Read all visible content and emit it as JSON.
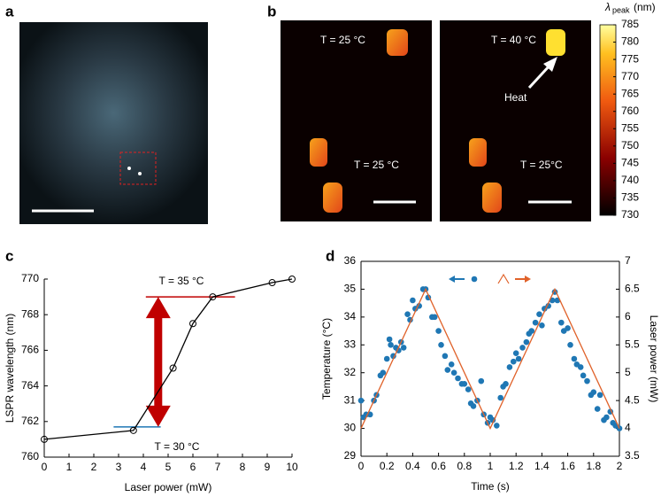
{
  "panels": {
    "a": {
      "label": "a"
    },
    "b": {
      "label": "b",
      "annotations": [
        "T = 25 °C",
        "T = 25 °C",
        "T = 40 °C",
        "Heat",
        "T = 25°C"
      ],
      "colorbar": {
        "symbol": "λ",
        "subscript": "peak",
        "unit": "(nm)",
        "lim": [
          730,
          785
        ],
        "ticks": [
          730,
          735,
          740,
          745,
          750,
          755,
          760,
          765,
          770,
          775,
          780,
          785
        ]
      }
    },
    "c": {
      "label": "c"
    },
    "d": {
      "label": "d"
    }
  },
  "chart_data": [
    {
      "type": "line",
      "xlabel": "Laser power (mW)",
      "ylabel": "LSPR wavelength (nm)",
      "x": [
        0,
        3.6,
        5.2,
        6,
        6.8,
        9.2,
        10
      ],
      "series": [
        {
          "color": "#000000",
          "values": [
            761,
            761.5,
            765,
            767.5,
            769,
            769.8,
            770
          ]
        }
      ],
      "xlim": [
        0,
        10
      ],
      "xticks": [
        0,
        1,
        2,
        3,
        4,
        5,
        6,
        7,
        8,
        9,
        10
      ],
      "ylim": [
        760,
        770
      ],
      "yticks": [
        760,
        762,
        764,
        766,
        768,
        770
      ],
      "hlines": [
        {
          "y": 769,
          "xmin": 4.1,
          "xmax": 7.7,
          "color": "#c00000"
        },
        {
          "y": 761.7,
          "xmin": 2.8,
          "xmax": 4.7,
          "color": "#1f77b4"
        }
      ],
      "arrow": {
        "x": 4.6,
        "color": "#c00000"
      },
      "annotations": [
        "T = 35 °C",
        "T = 30 °C"
      ]
    },
    {
      "type": "line",
      "xlabel": "Time (s)",
      "ylabel": "Temperature (°C)",
      "y2label": "Laser power (mW)",
      "box": true,
      "x": [
        0,
        0.02,
        0.04,
        0.07,
        0.1,
        0.12,
        0.15,
        0.17,
        0.2,
        0.22,
        0.23,
        0.25,
        0.27,
        0.29,
        0.31,
        0.33,
        0.36,
        0.38,
        0.4,
        0.42,
        0.45,
        0.48,
        0.5,
        0.52,
        0.55,
        0.57,
        0.6,
        0.62,
        0.65,
        0.67,
        0.7,
        0.72,
        0.75,
        0.78,
        0.8,
        0.83,
        0.85,
        0.87,
        0.9,
        0.93,
        0.95,
        0.98,
        1.0,
        1.02,
        1.05,
        1.08,
        1.1,
        1.12,
        1.15,
        1.18,
        1.2,
        1.22,
        1.25,
        1.28,
        1.3,
        1.32,
        1.35,
        1.38,
        1.4,
        1.42,
        1.45,
        1.48,
        1.5,
        1.52,
        1.55,
        1.57,
        1.6,
        1.62,
        1.65,
        1.67,
        1.7,
        1.72,
        1.75,
        1.78,
        1.8,
        1.83,
        1.85,
        1.88,
        1.9,
        1.93,
        1.95,
        1.97,
        2.0
      ],
      "series": [
        {
          "color": "#1f77b4",
          "marker": "dot",
          "values": [
            31.0,
            30.4,
            30.5,
            30.5,
            31.0,
            31.2,
            31.9,
            32.0,
            32.5,
            33.2,
            33.0,
            32.6,
            32.9,
            32.8,
            33.1,
            32.9,
            34.1,
            33.9,
            34.6,
            34.3,
            34.4,
            35.0,
            35.0,
            34.7,
            34.0,
            34.0,
            33.5,
            33.0,
            32.6,
            32.1,
            32.3,
            32.0,
            31.8,
            31.6,
            31.6,
            31.4,
            30.9,
            30.8,
            31.0,
            31.7,
            30.5,
            30.2,
            30.4,
            30.3,
            30.1,
            31.1,
            31.5,
            31.6,
            32.2,
            32.4,
            32.7,
            32.5,
            32.9,
            33.1,
            33.4,
            33.5,
            33.8,
            34.1,
            33.7,
            34.3,
            34.4,
            34.6,
            34.9,
            34.6,
            33.8,
            33.5,
            33.6,
            33.0,
            32.5,
            32.3,
            32.2,
            31.9,
            31.7,
            31.2,
            31.3,
            30.7,
            31.2,
            30.3,
            30.4,
            30.6,
            30.2,
            30.1,
            30.0
          ]
        },
        {
          "color": "#e0622a",
          "marker": "none",
          "axis": "y2",
          "x": [
            0,
            0.5,
            1,
            1.5,
            2
          ],
          "values": [
            4,
            6.5,
            4,
            6.5,
            4
          ]
        }
      ],
      "xlim": [
        0,
        2
      ],
      "xticks": [
        0,
        0.2,
        0.4,
        0.6,
        0.8,
        1,
        1.2,
        1.4,
        1.6,
        1.8,
        2
      ],
      "ylim": [
        29,
        36
      ],
      "yticks": [
        29,
        30,
        31,
        32,
        33,
        34,
        35,
        36
      ],
      "y2lim": [
        3.5,
        7
      ],
      "y2ticks": [
        3.5,
        4,
        4.5,
        5,
        5.5,
        6,
        6.5,
        7
      ]
    }
  ]
}
